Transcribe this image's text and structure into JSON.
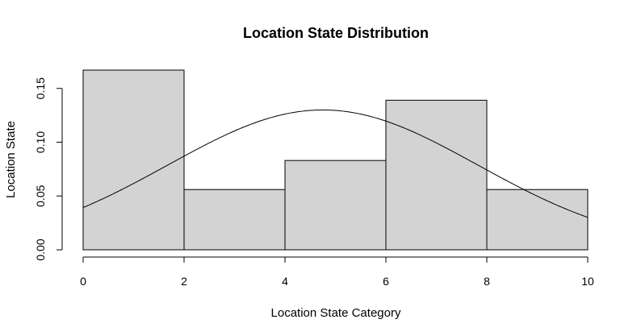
{
  "chart_data": {
    "type": "bar",
    "title": "Location State Distribution",
    "xlabel": "Location State Category",
    "ylabel": "Location State",
    "bins": [
      {
        "x0": 0,
        "x1": 2,
        "value": 0.167
      },
      {
        "x0": 2,
        "x1": 4,
        "value": 0.056
      },
      {
        "x0": 4,
        "x1": 6,
        "value": 0.083
      },
      {
        "x0": 6,
        "x1": 8,
        "value": 0.139
      },
      {
        "x0": 8,
        "x1": 10,
        "value": 0.056
      }
    ],
    "density_curve": {
      "type": "normal",
      "mean": 4.75,
      "sd": 3.07
    },
    "xlim": [
      0,
      10
    ],
    "ylim": [
      0,
      0.167
    ],
    "xticks": [
      0,
      2,
      4,
      6,
      8,
      10
    ],
    "xtick_labels": [
      "0",
      "2",
      "4",
      "6",
      "8",
      "10"
    ],
    "yticks": [
      0,
      0.05,
      0.1,
      0.15
    ],
    "ytick_labels": [
      "0.00",
      "0.05",
      "0.10",
      "0.15"
    ],
    "colors": {
      "bar_fill": "#d3d3d3",
      "bar_stroke": "#000000",
      "curve": "#000000"
    },
    "grid": false
  }
}
